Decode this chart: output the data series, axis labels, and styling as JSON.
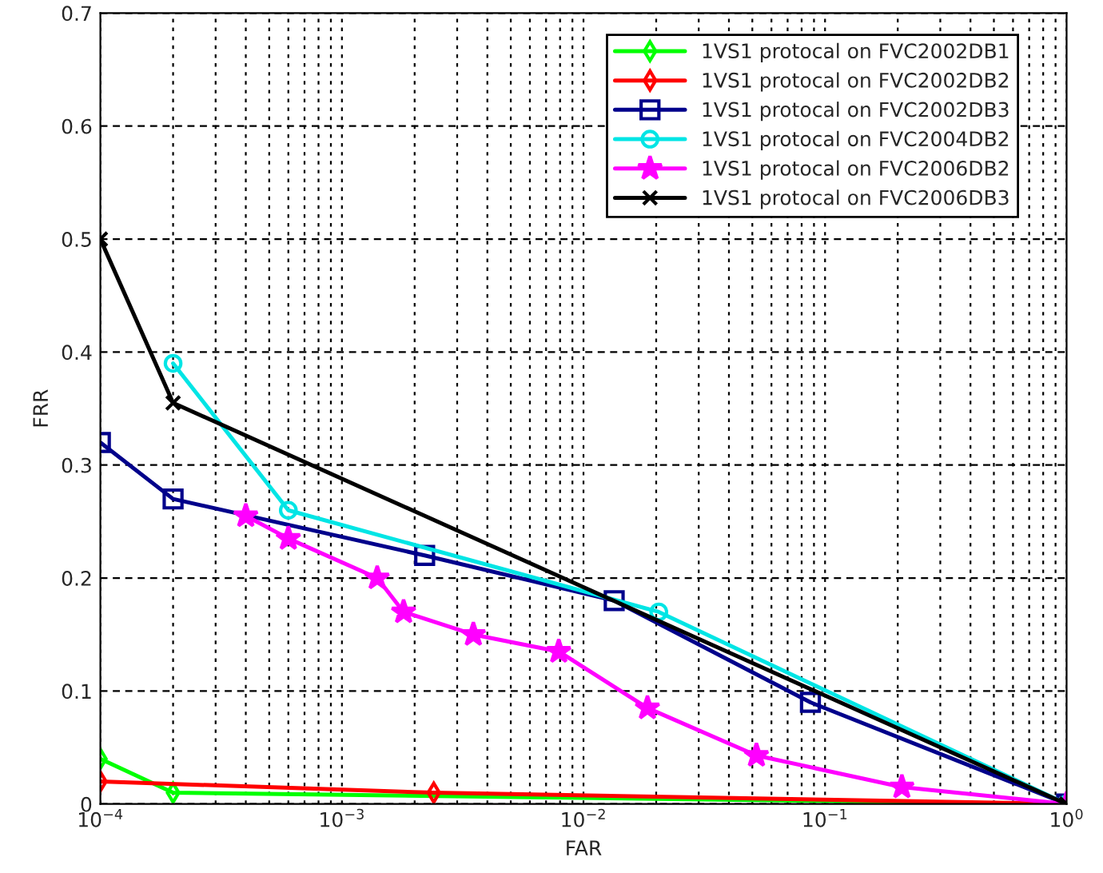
{
  "chart_data": {
    "type": "line",
    "xlabel": "FAR",
    "ylabel": "FRR",
    "log": "x",
    "grid": true,
    "legend": "top right",
    "xlim": [
      0.0001,
      1
    ],
    "xticks": [
      {
        "value": 0.0001,
        "label": "10$^{−4}$"
      },
      {
        "value": 0.001,
        "label": "10$^{−3}$"
      },
      {
        "value": 0.01,
        "label": "10$^{−2}$"
      },
      {
        "value": 0.1,
        "label": "10$^{−1}$"
      },
      {
        "value": 1,
        "label": "10$^{0}$"
      }
    ],
    "ylim": [
      0,
      0.7
    ],
    "yticks": [
      0,
      0.1,
      0.2,
      0.3,
      0.4,
      0.5,
      0.6,
      0.7
    ],
    "series": [
      {
        "name": "1VS1 protocal on FVC2002DB1",
        "color": "#00ff00",
        "marker": "diamond",
        "x": [
          0.0001,
          0.0002,
          1
        ],
        "values": [
          0.04,
          0.01,
          0
        ]
      },
      {
        "name": "1VS1 protocal on FVC2002DB2",
        "color": "#ff0000",
        "marker": "diamond",
        "x": [
          0.0001,
          0.0024,
          1
        ],
        "values": [
          0.02,
          0.01,
          0
        ]
      },
      {
        "name": "1VS1 protocal on FVC2002DB3",
        "color": "#00008b",
        "marker": "square",
        "x": [
          0.0001,
          0.0002,
          0.0022,
          0.0134,
          0.087,
          1
        ],
        "values": [
          0.32,
          0.27,
          0.22,
          0.18,
          0.09,
          0
        ]
      },
      {
        "name": "1VS1 protocal on FVC2004DB2",
        "color": "#00e5e5",
        "marker": "circle",
        "x": [
          0.0002,
          0.0006,
          0.0205,
          1
        ],
        "values": [
          0.39,
          0.26,
          0.17,
          0
        ]
      },
      {
        "name": "1VS1 protocal on FVC2006DB2",
        "color": "#ff00ff",
        "marker": "star",
        "x": [
          0.0004,
          0.0006,
          0.0014,
          0.0018,
          0.0035,
          0.0079,
          0.0184,
          0.052,
          0.208,
          1
        ],
        "values": [
          0.255,
          0.235,
          0.2,
          0.17,
          0.15,
          0.135,
          0.085,
          0.043,
          0.015,
          0
        ]
      },
      {
        "name": "1VS1 protocal on FVC2006DB3",
        "color": "#000000",
        "marker": "cross",
        "x": [
          0.0001,
          0.0002,
          1
        ],
        "values": [
          0.5,
          0.355,
          0
        ]
      }
    ]
  }
}
